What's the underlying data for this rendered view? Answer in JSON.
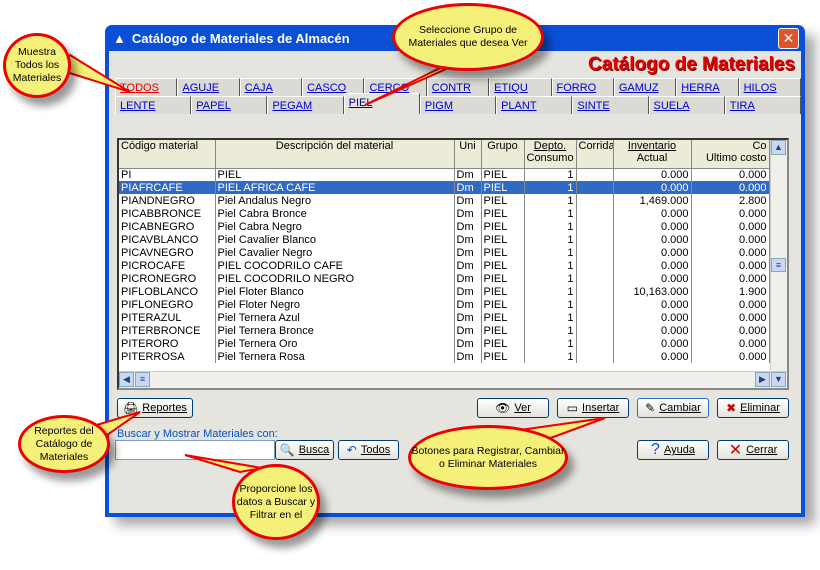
{
  "window": {
    "title": "Catálogo de Materiales de Almacén",
    "brand": "Catálogo de Materiales",
    "close": "✕"
  },
  "tabs_row1": [
    "TODOS",
    "AGUJE",
    "CAJA",
    "CASCO",
    "CERCO",
    "CONTR",
    "ETIQU",
    "FORRO",
    "GAMUZ",
    "HERRA",
    "HILOS"
  ],
  "tabs_row2": [
    "LENTE",
    "PAPEL",
    "PEGAM",
    "PIEL",
    "PIGM",
    "PLANT",
    "SINTE",
    "SUELA",
    "TIRA"
  ],
  "selected_tab": "PIEL",
  "grid": {
    "headers": {
      "codigo": "Código material",
      "descripcion": "Descripción del material",
      "uni": "Uni",
      "grupo": "Grupo",
      "depto_top": "Depto.",
      "depto_bottom": "Consumo",
      "corrida": "Corrida",
      "inv_top": "Inventario",
      "inv_bottom": "Actual",
      "costo_top": "Co",
      "costo_bottom": "Ultimo costo"
    },
    "rows": [
      [
        "PI",
        "PIEL",
        "Dm",
        "PIEL",
        "1",
        "",
        "0.000",
        "0.000"
      ],
      [
        "PIAFRCAFE",
        "PIEL AFRICA CAFE",
        "Dm",
        "PIEL",
        "1",
        "",
        "0.000",
        "0.000"
      ],
      [
        "PIANDNEGRO",
        "Piel Andalus Negro",
        "Dm",
        "PIEL",
        "1",
        "",
        "1,469.000",
        "2.800"
      ],
      [
        "PICABBRONCE",
        "Piel Cabra Bronce",
        "Dm",
        "PIEL",
        "1",
        "",
        "0.000",
        "0.000"
      ],
      [
        "PICABNEGRO",
        "Piel Cabra Negro",
        "Dm",
        "PIEL",
        "1",
        "",
        "0.000",
        "0.000"
      ],
      [
        "PICAVBLANCO",
        "Piel Cavalier Blanco",
        "Dm",
        "PIEL",
        "1",
        "",
        "0.000",
        "0.000"
      ],
      [
        "PICAVNEGRO",
        "Piel Cavalier Negro",
        "Dm",
        "PIEL",
        "1",
        "",
        "0.000",
        "0.000"
      ],
      [
        "PICROCAFE",
        "PIEL COCODRILO CAFE",
        "Dm",
        "PIEL",
        "1",
        "",
        "0.000",
        "0.000"
      ],
      [
        "PICRONEGRO",
        "PIEL COCODRILO NEGRO",
        "Dm",
        "PIEL",
        "1",
        "",
        "0.000",
        "0.000"
      ],
      [
        "PIFLOBLANCO",
        "Piel Floter Blanco",
        "Dm",
        "PIEL",
        "1",
        "",
        "10,163.000",
        "1.900"
      ],
      [
        "PIFLONEGRO",
        "Piel Floter Negro",
        "Dm",
        "PIEL",
        "1",
        "",
        "0.000",
        "0.000"
      ],
      [
        "PITERAZUL",
        "Piel Ternera Azul",
        "Dm",
        "PIEL",
        "1",
        "",
        "0.000",
        "0.000"
      ],
      [
        "PITERBRONCE",
        "Piel Ternera Bronce",
        "Dm",
        "PIEL",
        "1",
        "",
        "0.000",
        "0.000"
      ],
      [
        "PITERORO",
        "Piel Ternera Oro",
        "Dm",
        "PIEL",
        "1",
        "",
        "0.000",
        "0.000"
      ],
      [
        "PITERROSA",
        "Piel Ternera Rosa",
        "Dm",
        "PIEL",
        "1",
        "",
        "0.000",
        "0.000"
      ]
    ],
    "selected_row": 1
  },
  "buttons": {
    "reportes": "Reportes",
    "ver": "Ver",
    "insertar": "Insertar",
    "cambiar": "Cambiar",
    "eliminar": "Eliminar",
    "busca": "Busca",
    "todos": "Todos",
    "ayuda": "Ayuda",
    "cerrar": "Cerrar"
  },
  "search": {
    "label": "Buscar y Mostrar Materiales con:",
    "value": ""
  },
  "callouts": {
    "todos": "Muestra Todos los Materiales",
    "grupo": "Seleccione Grupo de Materiales que desea Ver",
    "reportes": "Reportes del Catálogo de Materiales",
    "buscar": "Proporcione los datos a Buscar y Filtrar en el",
    "botones": "Botones para Registrar, Cambiar o Eliminar Materiales"
  },
  "colors": {
    "titlebar": "#0a4fd6",
    "brand": "#e00000",
    "selection": "#316ac5",
    "callout_fill": "#f5f07a",
    "callout_border": "#e00000"
  }
}
